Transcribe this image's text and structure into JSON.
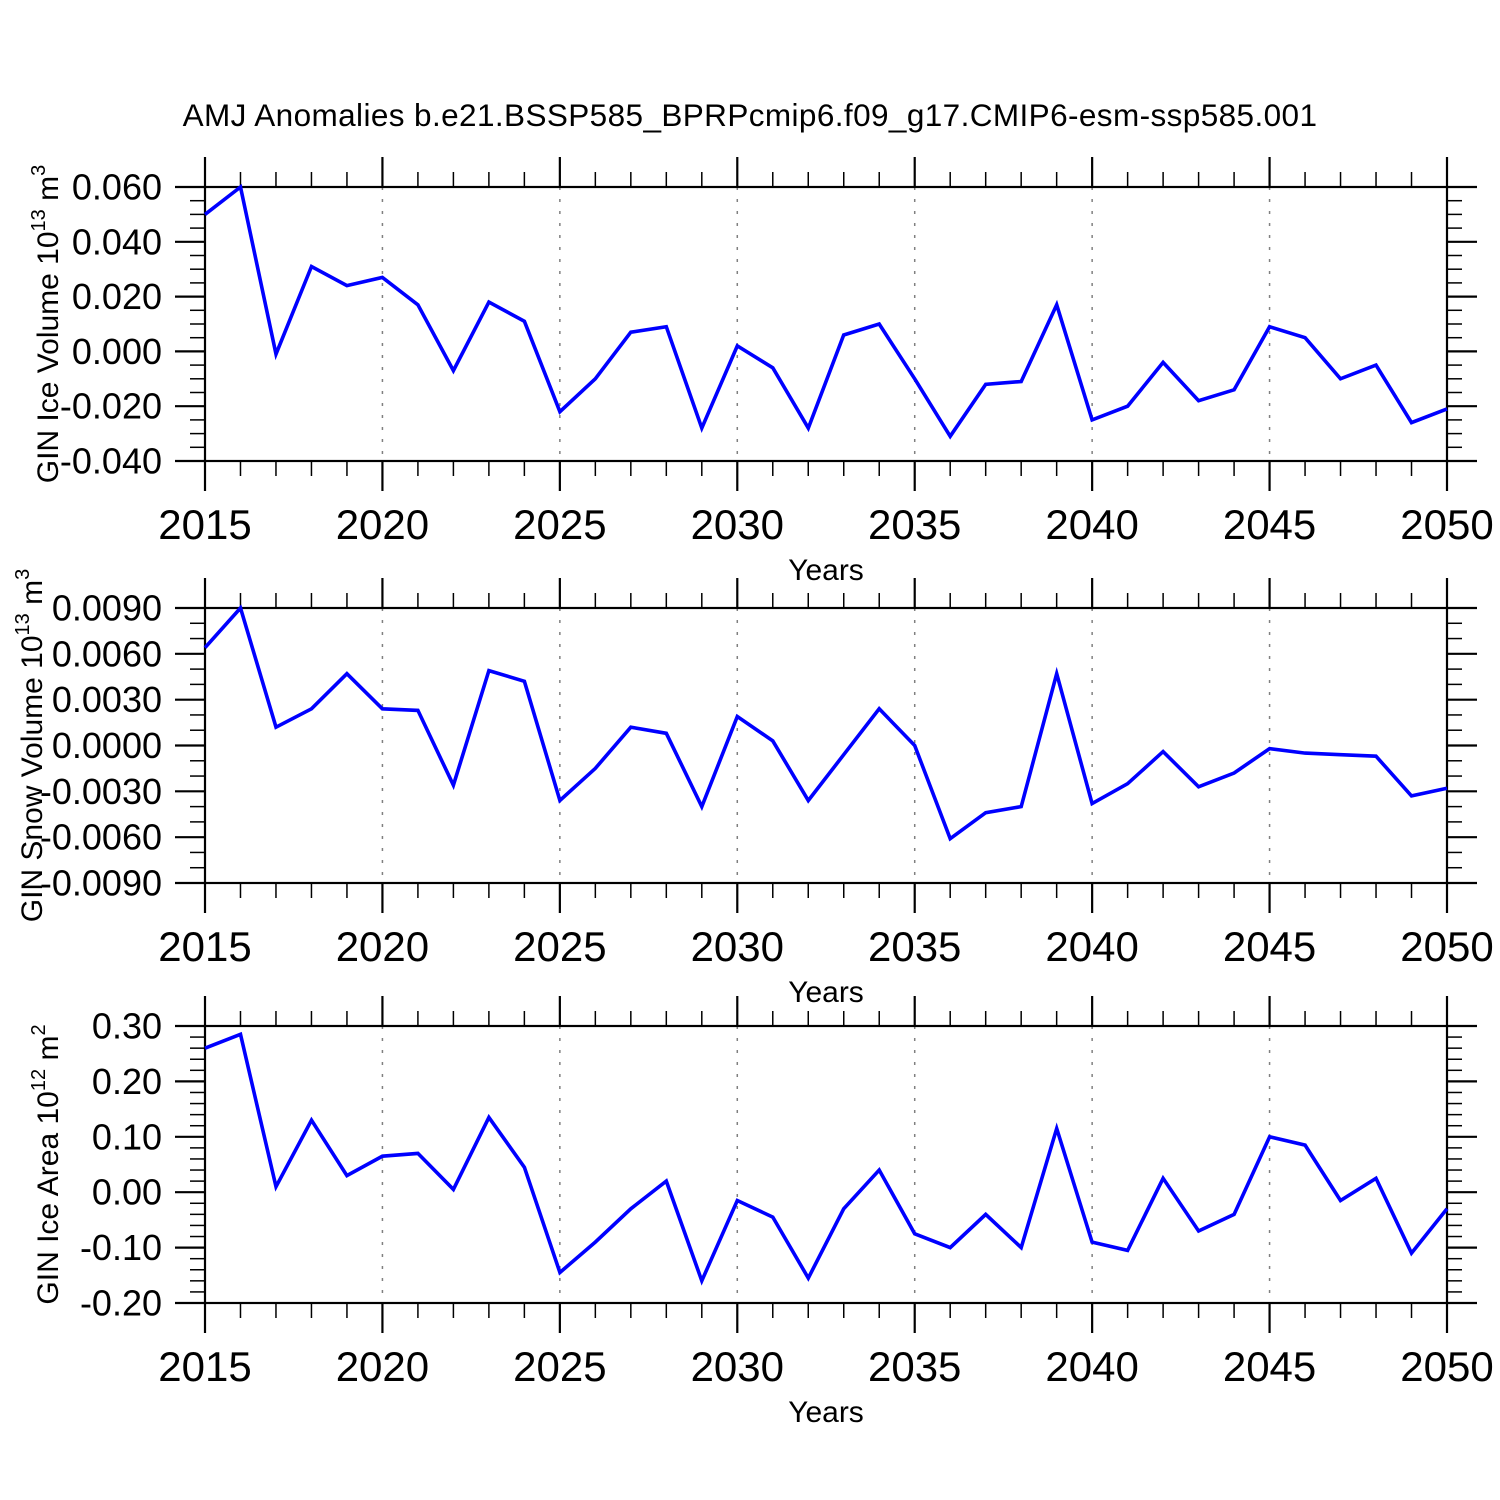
{
  "title": "AMJ Anomalies b.e21.BSSP585_BPRPcmip6.f09_g17.CMIP6-esm-ssp585.001",
  "colors": {
    "line": "#0000ff",
    "grid": "#808080",
    "axis": "#000000",
    "text": "#000000"
  },
  "x_axis": {
    "label": "Years",
    "major_tick_years": [
      2015,
      2020,
      2025,
      2030,
      2035,
      2040,
      2045,
      2050
    ],
    "major_tick_labels": [
      "2015",
      "2020",
      "2025",
      "2030",
      "2035",
      "2040",
      "2045",
      "2050"
    ],
    "grid_years": [
      2020,
      2025,
      2030,
      2035,
      2040,
      2045
    ],
    "minor_step_years": 1,
    "xlim": [
      2015,
      2050
    ]
  },
  "chart_data": [
    {
      "type": "line",
      "name": "gin-ice-volume",
      "ylabel_parts": {
        "base": "GIN Ice Volume 10",
        "exp": "13",
        "unit": " m",
        "unit_exp": "3"
      },
      "xlabel": "Years",
      "ylim": [
        -0.04,
        0.06
      ],
      "ymajor": 0.02,
      "yminor": 0.005,
      "ytick_values": [
        0.06,
        0.04,
        0.02,
        0.0,
        -0.02,
        -0.04
      ],
      "ytick_labels": [
        "0.060",
        "0.040",
        "0.020",
        "0.000",
        "-0.020",
        "-0.040"
      ],
      "grid": "vertical-dashed",
      "legend": "none",
      "x": [
        2015,
        2016,
        2017,
        2018,
        2019,
        2020,
        2021,
        2022,
        2023,
        2024,
        2025,
        2026,
        2027,
        2028,
        2029,
        2030,
        2031,
        2032,
        2033,
        2034,
        2035,
        2036,
        2037,
        2038,
        2039,
        2040,
        2041,
        2042,
        2043,
        2044,
        2045,
        2046,
        2047,
        2048,
        2049,
        2050
      ],
      "y": [
        0.05,
        0.06,
        -0.001,
        0.031,
        0.024,
        0.027,
        0.017,
        -0.007,
        0.018,
        0.011,
        -0.022,
        -0.01,
        0.007,
        0.009,
        -0.028,
        0.002,
        -0.006,
        -0.028,
        0.006,
        0.01,
        -0.01,
        -0.031,
        -0.012,
        -0.011,
        0.017,
        -0.025,
        -0.02,
        -0.004,
        -0.018,
        -0.014,
        0.009,
        0.005,
        -0.01,
        -0.005,
        -0.026,
        -0.021
      ]
    },
    {
      "type": "line",
      "name": "gin-snow-volume",
      "ylabel_parts": {
        "base": "GIN Snow Volume 10",
        "exp": "13",
        "unit": " m",
        "unit_exp": "3"
      },
      "xlabel": "Years",
      "ylim": [
        -0.009,
        0.009
      ],
      "ymajor": 0.003,
      "yminor": 0.001,
      "ytick_values": [
        0.009,
        0.006,
        0.003,
        0.0,
        -0.003,
        -0.006,
        -0.009
      ],
      "ytick_labels": [
        "0.0090",
        "0.0060",
        "0.0030",
        "0.0000",
        "-0.0030",
        "-0.0060",
        "-0.0090"
      ],
      "grid": "vertical-dashed",
      "legend": "none",
      "x": [
        2015,
        2016,
        2017,
        2018,
        2019,
        2020,
        2021,
        2022,
        2023,
        2024,
        2025,
        2026,
        2027,
        2028,
        2029,
        2030,
        2031,
        2032,
        2033,
        2034,
        2035,
        2036,
        2037,
        2038,
        2039,
        2040,
        2041,
        2042,
        2043,
        2044,
        2045,
        2046,
        2047,
        2048,
        2049,
        2050
      ],
      "y": [
        0.0064,
        0.009,
        0.0012,
        0.0024,
        0.0047,
        0.0024,
        0.0023,
        -0.0026,
        0.0049,
        0.0042,
        -0.0036,
        -0.0015,
        0.0012,
        0.0008,
        -0.004,
        0.0019,
        0.0003,
        -0.0036,
        -0.0006,
        0.0024,
        0.0,
        -0.0061,
        -0.0044,
        -0.004,
        0.0047,
        -0.0038,
        -0.0025,
        -0.0004,
        -0.0027,
        -0.0018,
        -0.0002,
        -0.0005,
        -0.0006,
        -0.0007,
        -0.0033,
        -0.0028
      ]
    },
    {
      "type": "line",
      "name": "gin-ice-area",
      "ylabel_parts": {
        "base": "GIN Ice Area 10",
        "exp": "12",
        "unit": " m",
        "unit_exp": "2"
      },
      "xlabel": "Years",
      "ylim": [
        -0.2,
        0.3
      ],
      "ymajor": 0.1,
      "yminor": 0.02,
      "ytick_values": [
        0.3,
        0.2,
        0.1,
        0.0,
        -0.1,
        -0.2
      ],
      "ytick_labels": [
        "0.30",
        "0.20",
        "0.10",
        "0.00",
        "-0.10",
        "-0.20"
      ],
      "grid": "vertical-dashed",
      "legend": "none",
      "x": [
        2015,
        2016,
        2017,
        2018,
        2019,
        2020,
        2021,
        2022,
        2023,
        2024,
        2025,
        2026,
        2027,
        2028,
        2029,
        2030,
        2031,
        2032,
        2033,
        2034,
        2035,
        2036,
        2037,
        2038,
        2039,
        2040,
        2041,
        2042,
        2043,
        2044,
        2045,
        2046,
        2047,
        2048,
        2049,
        2050
      ],
      "y": [
        0.26,
        0.285,
        0.01,
        0.13,
        0.03,
        0.065,
        0.07,
        0.005,
        0.135,
        0.045,
        -0.145,
        -0.09,
        -0.03,
        0.02,
        -0.16,
        -0.015,
        -0.045,
        -0.155,
        -0.03,
        0.04,
        -0.075,
        -0.1,
        -0.04,
        -0.1,
        0.115,
        -0.09,
        -0.105,
        0.025,
        -0.07,
        -0.04,
        0.1,
        0.085,
        -0.015,
        0.025,
        -0.11,
        -0.03
      ]
    }
  ]
}
